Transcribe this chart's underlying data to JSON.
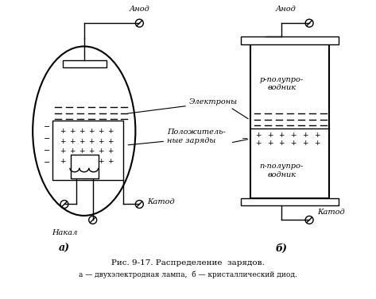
{
  "bg_color": "#ffffff",
  "fig_width": 4.73,
  "fig_height": 3.77,
  "dpi": 100,
  "title_line1": "Рис. 9-17. Распределение  зарядов.",
  "title_line2": "а — двухэлектродная лампа,  б — кристаллический диод.",
  "label_a": "а)",
  "label_b": "б)",
  "label_anod_a": "Анод",
  "label_anod_b": "Анод",
  "label_katod_a": "Катод",
  "label_katod_b": "Катод",
  "label_nakal": "Накал",
  "label_elektrony": "Электроны",
  "label_polozhit": "Положитель-\nные заряды",
  "label_p_semi": "р-полупро-\nводник",
  "label_n_semi": "п-полупро-\nводник"
}
